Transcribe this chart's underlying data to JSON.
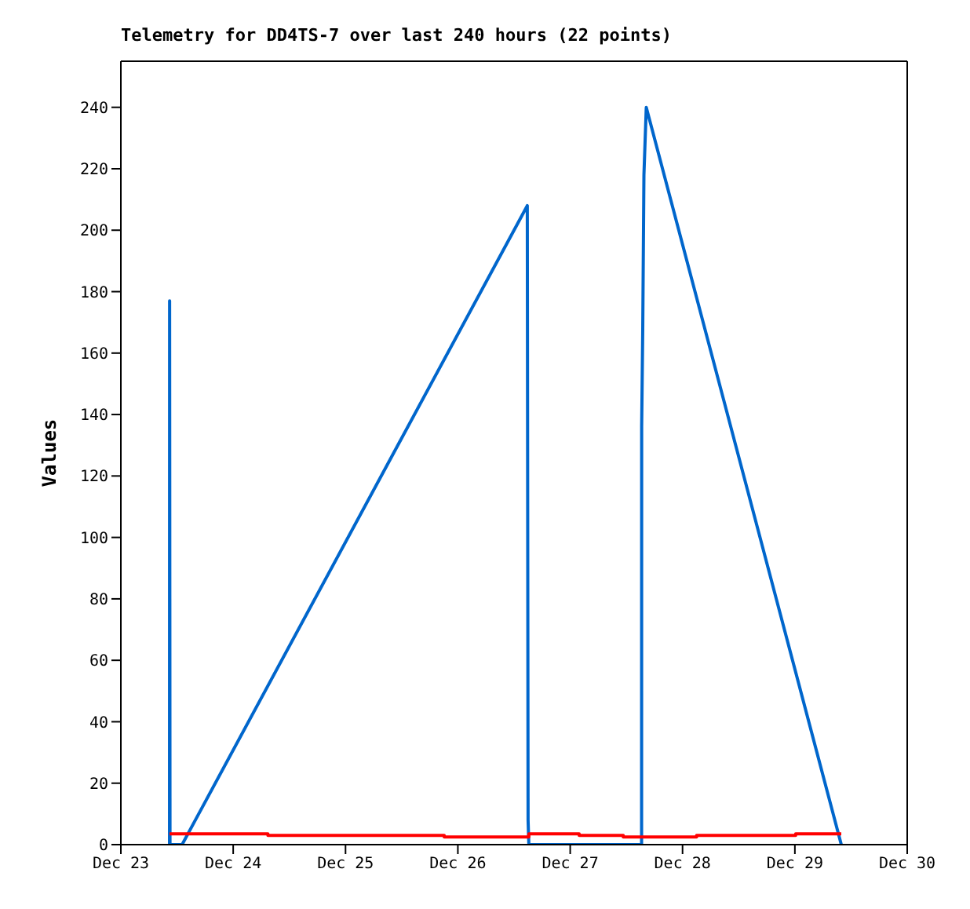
{
  "chart_data": {
    "type": "line",
    "title": "Telemetry for DD4TS-7 over last 240 hours (22 points)",
    "ylabel": "Values",
    "xlim": [
      "--12-23",
      "--12-30"
    ],
    "xticks": [
      {
        "value": "--12-23",
        "label": "Dec 23"
      },
      {
        "value": "--12-24",
        "label": "Dec 24"
      },
      {
        "value": "--12-25",
        "label": "Dec 25"
      },
      {
        "value": "--12-26",
        "label": "Dec 26"
      },
      {
        "value": "--12-27",
        "label": "Dec 27"
      },
      {
        "value": "--12-28",
        "label": "Dec 28"
      },
      {
        "value": "--12-29",
        "label": "Dec 29"
      },
      {
        "value": "--12-30",
        "label": "Dec 30"
      }
    ],
    "ylim": [
      0,
      255
    ],
    "yticks": [
      0,
      20,
      40,
      60,
      80,
      100,
      120,
      140,
      160,
      180,
      200,
      220,
      240
    ],
    "marker": "none",
    "line_style": "solid",
    "series": [
      {
        "color": "#0066cc",
        "x": [
          "--12-23T10:24",
          "--12-23T10:25",
          "--12-23T10:30",
          "--12-23T13:05",
          "--12-26T14:50",
          "--12-26T15:00",
          "--12-26T15:10",
          "--12-27T15:15",
          "--12-27T15:16",
          "--12-27T15:30",
          "--12-27T15:45",
          "--12-27T16:15",
          "--12-29T09:55"
        ],
        "values": [
          0,
          177,
          0,
          0,
          208,
          8,
          0,
          0,
          136,
          168,
          218,
          240,
          0
        ]
      },
      {
        "type": "step",
        "color": "#ff0000",
        "x": [
          "--12-23T10:24",
          "--12-24T07:25",
          "--12-25T21:05",
          "--12-26T15:10",
          "--12-27T01:55",
          "--12-27T11:20",
          "--12-28T03:00",
          "--12-29T00:10",
          "--12-29T09:55"
        ],
        "values": [
          3.5,
          3,
          2.5,
          3.5,
          3,
          2.5,
          3,
          3.5,
          3.5
        ]
      }
    ]
  }
}
